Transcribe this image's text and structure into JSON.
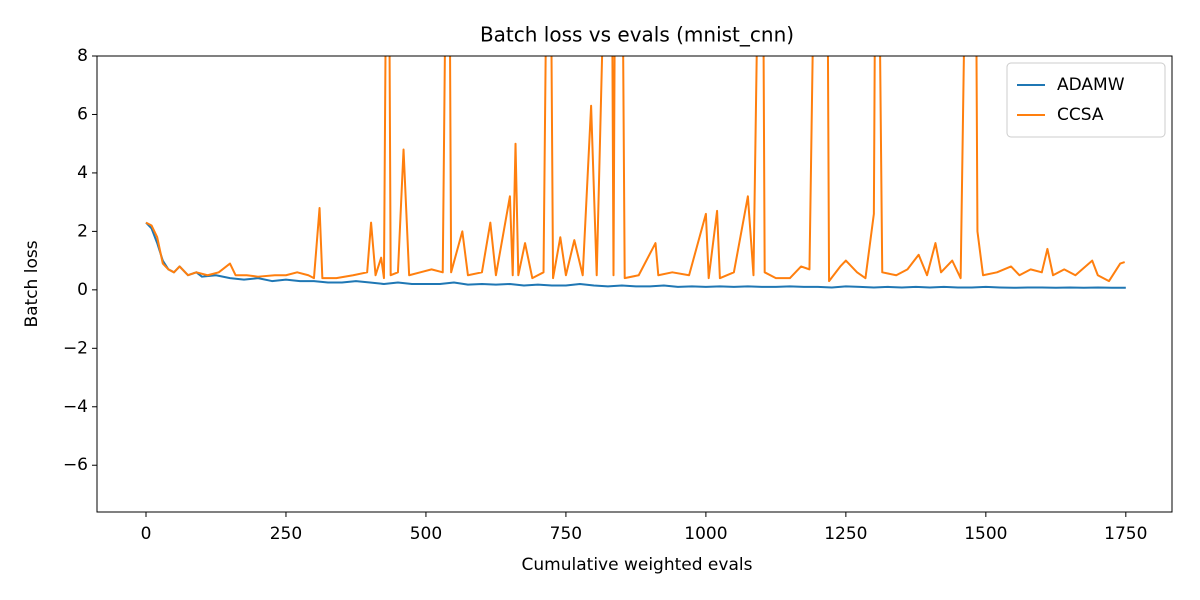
{
  "chart_data": {
    "type": "line",
    "title": "Batch loss vs evals (mnist_cnn)",
    "x_label": "Cumulative weighted evals",
    "y_label": "Batch loss",
    "xlim": [
      -87.5,
      1832.5
    ],
    "ylim": [
      -7.6,
      8
    ],
    "xticks": [
      0,
      250,
      500,
      750,
      1000,
      1250,
      1500,
      1750
    ],
    "yticks": [
      {
        "value": -6,
        "label": "−6"
      },
      {
        "value": -4,
        "label": "−4"
      },
      {
        "value": -2,
        "label": "−2"
      },
      0,
      2,
      4,
      6,
      8
    ],
    "legend": "upper right",
    "grid": false,
    "series": [
      {
        "name": "ADAMW",
        "color": "#1f77b4",
        "x": [
          0,
          10,
          20,
          30,
          40,
          50,
          60,
          75,
          90,
          100,
          125,
          150,
          175,
          200,
          225,
          250,
          275,
          300,
          325,
          350,
          375,
          400,
          425,
          450,
          475,
          500,
          525,
          550,
          575,
          600,
          625,
          650,
          675,
          700,
          725,
          750,
          775,
          800,
          825,
          850,
          875,
          900,
          925,
          950,
          975,
          1000,
          1025,
          1050,
          1075,
          1100,
          1125,
          1150,
          1175,
          1200,
          1225,
          1250,
          1275,
          1300,
          1325,
          1350,
          1375,
          1400,
          1425,
          1450,
          1475,
          1500,
          1525,
          1550,
          1575,
          1600,
          1625,
          1650,
          1675,
          1700,
          1725,
          1750
        ],
        "values": [
          2.3,
          2.1,
          1.6,
          1.0,
          0.7,
          0.6,
          0.8,
          0.5,
          0.6,
          0.45,
          0.5,
          0.4,
          0.35,
          0.4,
          0.3,
          0.35,
          0.3,
          0.3,
          0.25,
          0.25,
          0.3,
          0.25,
          0.2,
          0.25,
          0.2,
          0.2,
          0.2,
          0.25,
          0.18,
          0.2,
          0.18,
          0.2,
          0.15,
          0.18,
          0.15,
          0.15,
          0.2,
          0.15,
          0.12,
          0.15,
          0.12,
          0.12,
          0.15,
          0.1,
          0.12,
          0.1,
          0.12,
          0.1,
          0.12,
          0.1,
          0.1,
          0.12,
          0.1,
          0.1,
          0.08,
          0.12,
          0.1,
          0.08,
          0.1,
          0.08,
          0.1,
          0.08,
          0.1,
          0.08,
          0.08,
          0.1,
          0.08,
          0.07,
          0.08,
          0.08,
          0.07,
          0.08,
          0.07,
          0.08,
          0.07,
          0.07
        ]
      },
      {
        "name": "CCSA",
        "color": "#ff7f0e",
        "x": [
          0,
          10,
          20,
          30,
          40,
          50,
          60,
          75,
          90,
          110,
          130,
          150,
          160,
          180,
          200,
          230,
          250,
          270,
          290,
          300,
          310,
          315,
          340,
          370,
          395,
          402,
          410,
          420,
          425,
          432,
          437,
          450,
          460,
          470,
          490,
          510,
          530,
          540,
          545,
          565,
          575,
          600,
          615,
          625,
          650,
          655,
          660,
          665,
          677,
          690,
          710,
          720,
          727,
          740,
          750,
          765,
          780,
          795,
          805,
          830,
          835,
          840,
          848,
          855,
          880,
          910,
          915,
          940,
          970,
          1000,
          1005,
          1020,
          1025,
          1050,
          1075,
          1085,
          1100,
          1105,
          1125,
          1150,
          1170,
          1185,
          1200,
          1215,
          1220,
          1240,
          1250,
          1270,
          1285,
          1300,
          1305,
          1315,
          1340,
          1360,
          1380,
          1395,
          1410,
          1420,
          1440,
          1455,
          1470,
          1480,
          1485,
          1495,
          1520,
          1545,
          1560,
          1580,
          1600,
          1610,
          1620,
          1640,
          1660,
          1690,
          1700,
          1720,
          1740,
          1748
        ],
        "values": [
          2.3,
          2.2,
          1.8,
          0.9,
          0.7,
          0.6,
          0.8,
          0.5,
          0.6,
          0.5,
          0.6,
          0.9,
          0.5,
          0.5,
          0.45,
          0.5,
          0.5,
          0.6,
          0.5,
          0.4,
          2.8,
          0.4,
          0.4,
          0.5,
          0.6,
          2.3,
          0.5,
          1.1,
          0.4,
          20,
          0.5,
          0.6,
          4.8,
          0.5,
          0.6,
          0.7,
          0.6,
          20,
          0.6,
          2.0,
          0.5,
          0.6,
          2.3,
          0.5,
          3.2,
          0.5,
          5.0,
          0.5,
          1.6,
          0.4,
          0.6,
          20,
          0.4,
          1.8,
          0.5,
          1.7,
          0.5,
          6.3,
          0.5,
          20,
          0.5,
          20,
          20,
          0.4,
          0.5,
          1.6,
          0.5,
          0.6,
          0.5,
          2.6,
          0.4,
          2.7,
          0.4,
          0.6,
          3.2,
          0.5,
          20,
          0.6,
          0.4,
          0.4,
          0.8,
          0.7,
          20,
          20,
          0.3,
          0.8,
          1.0,
          0.6,
          0.4,
          2.6,
          20,
          0.6,
          0.5,
          0.7,
          1.2,
          0.5,
          1.6,
          0.6,
          1.0,
          0.4,
          20,
          20,
          2.0,
          0.5,
          0.6,
          0.8,
          0.5,
          0.7,
          0.6,
          1.4,
          0.5,
          0.7,
          0.5,
          1.0,
          0.5,
          0.3,
          0.9,
          0.95
        ]
      }
    ]
  }
}
